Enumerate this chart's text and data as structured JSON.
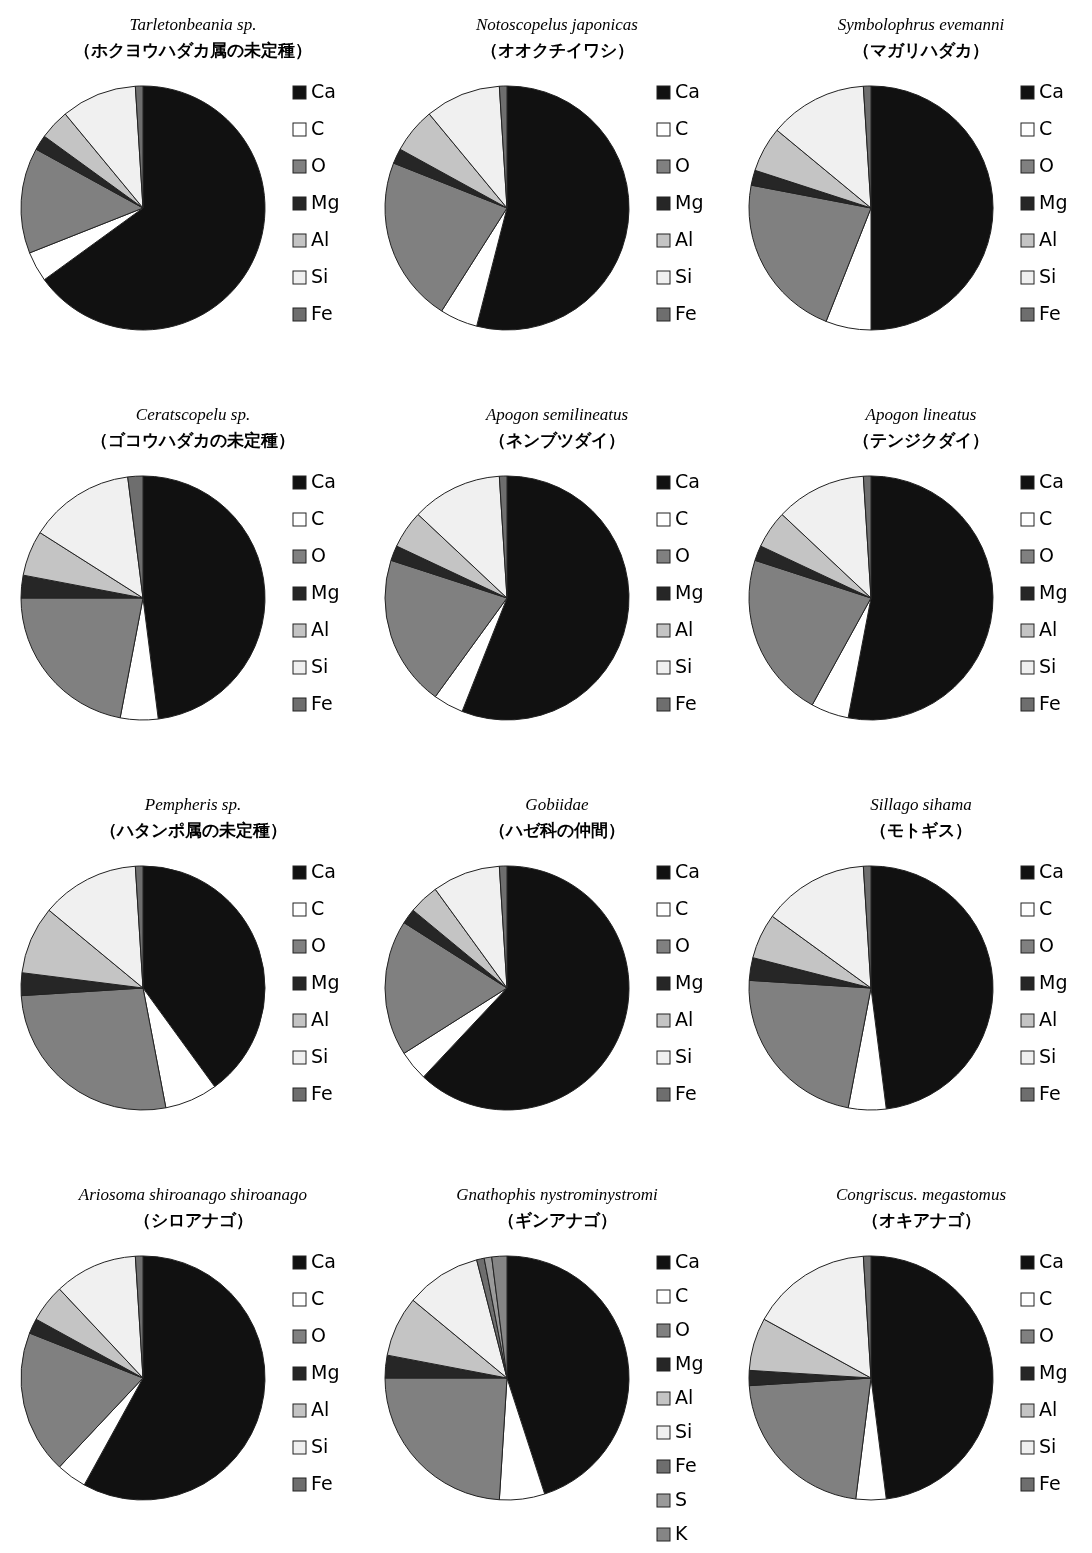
{
  "chart_data": [
    {
      "type": "pie",
      "title": "Tarletonbeania sp.",
      "subtitle": "（ホクヨウハダカ属の未定種）",
      "categories": [
        "Ca",
        "C",
        "O",
        "Mg",
        "Al",
        "Si",
        "Fe"
      ],
      "values": [
        65,
        4,
        14,
        2,
        4,
        10,
        1
      ],
      "colors": [
        "#111111",
        "#ffffff",
        "#808080",
        "#262626",
        "#c4c4c4",
        "#f0f0f0",
        "#6e6e6e"
      ],
      "legend": "right"
    },
    {
      "type": "pie",
      "title": "Notoscopelus japonicas",
      "subtitle": "（オオクチイワシ）",
      "categories": [
        "Ca",
        "C",
        "O",
        "Mg",
        "Al",
        "Si",
        "Fe"
      ],
      "values": [
        54,
        5,
        22,
        2,
        6,
        10,
        1
      ],
      "colors": [
        "#111111",
        "#ffffff",
        "#808080",
        "#262626",
        "#c4c4c4",
        "#f0f0f0",
        "#6e6e6e"
      ],
      "legend": "right"
    },
    {
      "type": "pie",
      "title": "Symbolophrus evemanni",
      "subtitle": "（マガリハダカ）",
      "categories": [
        "Ca",
        "C",
        "O",
        "Mg",
        "Al",
        "Si",
        "Fe"
      ],
      "values": [
        50,
        6,
        22,
        2,
        6,
        13,
        1
      ],
      "colors": [
        "#111111",
        "#ffffff",
        "#808080",
        "#262626",
        "#c4c4c4",
        "#f0f0f0",
        "#6e6e6e"
      ],
      "legend": "right"
    },
    {
      "type": "pie",
      "title": "Ceratscopelu sp.",
      "subtitle": "（ゴコウハダカの未定種）",
      "categories": [
        "Ca",
        "C",
        "O",
        "Mg",
        "Al",
        "Si",
        "Fe"
      ],
      "values": [
        48,
        5,
        22,
        3,
        6,
        14,
        2
      ],
      "colors": [
        "#111111",
        "#ffffff",
        "#808080",
        "#262626",
        "#c4c4c4",
        "#f0f0f0",
        "#6e6e6e"
      ],
      "legend": "right"
    },
    {
      "type": "pie",
      "title": "Apogon semilineatus",
      "subtitle": "（ネンブツダイ）",
      "categories": [
        "Ca",
        "C",
        "O",
        "Mg",
        "Al",
        "Si",
        "Fe"
      ],
      "values": [
        56,
        4,
        20,
        2,
        5,
        12,
        1
      ],
      "colors": [
        "#111111",
        "#ffffff",
        "#808080",
        "#262626",
        "#c4c4c4",
        "#f0f0f0",
        "#6e6e6e"
      ],
      "legend": "right"
    },
    {
      "type": "pie",
      "title": "Apogon lineatus",
      "subtitle": "（テンジクダイ）",
      "categories": [
        "Ca",
        "C",
        "O",
        "Mg",
        "Al",
        "Si",
        "Fe"
      ],
      "values": [
        53,
        5,
        22,
        2,
        5,
        12,
        1
      ],
      "colors": [
        "#111111",
        "#ffffff",
        "#808080",
        "#262626",
        "#c4c4c4",
        "#f0f0f0",
        "#6e6e6e"
      ],
      "legend": "right"
    },
    {
      "type": "pie",
      "title": "Pempheris sp.",
      "subtitle": "（ハタンポ属の未定種）",
      "categories": [
        "Ca",
        "C",
        "O",
        "Mg",
        "Al",
        "Si",
        "Fe"
      ],
      "values": [
        40,
        7,
        27,
        3,
        9,
        13,
        1
      ],
      "colors": [
        "#111111",
        "#ffffff",
        "#808080",
        "#262626",
        "#c4c4c4",
        "#f0f0f0",
        "#6e6e6e"
      ],
      "legend": "right"
    },
    {
      "type": "pie",
      "title": "Gobiidae",
      "subtitle": "（ハゼ科の仲間）",
      "categories": [
        "Ca",
        "C",
        "O",
        "Mg",
        "Al",
        "Si",
        "Fe"
      ],
      "values": [
        62,
        4,
        18,
        2,
        4,
        9,
        1
      ],
      "colors": [
        "#111111",
        "#ffffff",
        "#808080",
        "#262626",
        "#c4c4c4",
        "#f0f0f0",
        "#6e6e6e"
      ],
      "legend": "right"
    },
    {
      "type": "pie",
      "title": "Sillago sihama",
      "subtitle": "（モトギス）",
      "categories": [
        "Ca",
        "C",
        "O",
        "Mg",
        "Al",
        "Si",
        "Fe"
      ],
      "values": [
        48,
        5,
        23,
        3,
        6,
        14,
        1
      ],
      "colors": [
        "#111111",
        "#ffffff",
        "#808080",
        "#262626",
        "#c4c4c4",
        "#f0f0f0",
        "#6e6e6e"
      ],
      "legend": "right"
    },
    {
      "type": "pie",
      "title": "Ariosoma shiroanago shiroanago",
      "subtitle": "（シロアナゴ）",
      "categories": [
        "Ca",
        "C",
        "O",
        "Mg",
        "Al",
        "Si",
        "Fe"
      ],
      "values": [
        58,
        4,
        19,
        2,
        5,
        11,
        1
      ],
      "colors": [
        "#111111",
        "#ffffff",
        "#808080",
        "#262626",
        "#c4c4c4",
        "#f0f0f0",
        "#6e6e6e"
      ],
      "legend": "right"
    },
    {
      "type": "pie",
      "title": "Gnathophis nystrominystromi",
      "subtitle": "（ギンアナゴ）",
      "categories": [
        "Ca",
        "C",
        "O",
        "Mg",
        "Al",
        "Si",
        "Fe",
        "S",
        "K"
      ],
      "values": [
        45,
        6,
        24,
        3,
        8,
        10,
        1,
        1,
        2
      ],
      "colors": [
        "#111111",
        "#ffffff",
        "#808080",
        "#262626",
        "#c4c4c4",
        "#f0f0f0",
        "#6e6e6e",
        "#9a9a9a",
        "#858585"
      ],
      "legend": "right"
    },
    {
      "type": "pie",
      "title": "Congriscus. megastomus",
      "subtitle": "（オキアナゴ）",
      "categories": [
        "Ca",
        "C",
        "O",
        "Mg",
        "Al",
        "Si",
        "Fe"
      ],
      "values": [
        48,
        4,
        22,
        2,
        7,
        16,
        1
      ],
      "colors": [
        "#111111",
        "#ffffff",
        "#808080",
        "#262626",
        "#c4c4c4",
        "#f0f0f0",
        "#6e6e6e"
      ],
      "legend": "right"
    }
  ]
}
